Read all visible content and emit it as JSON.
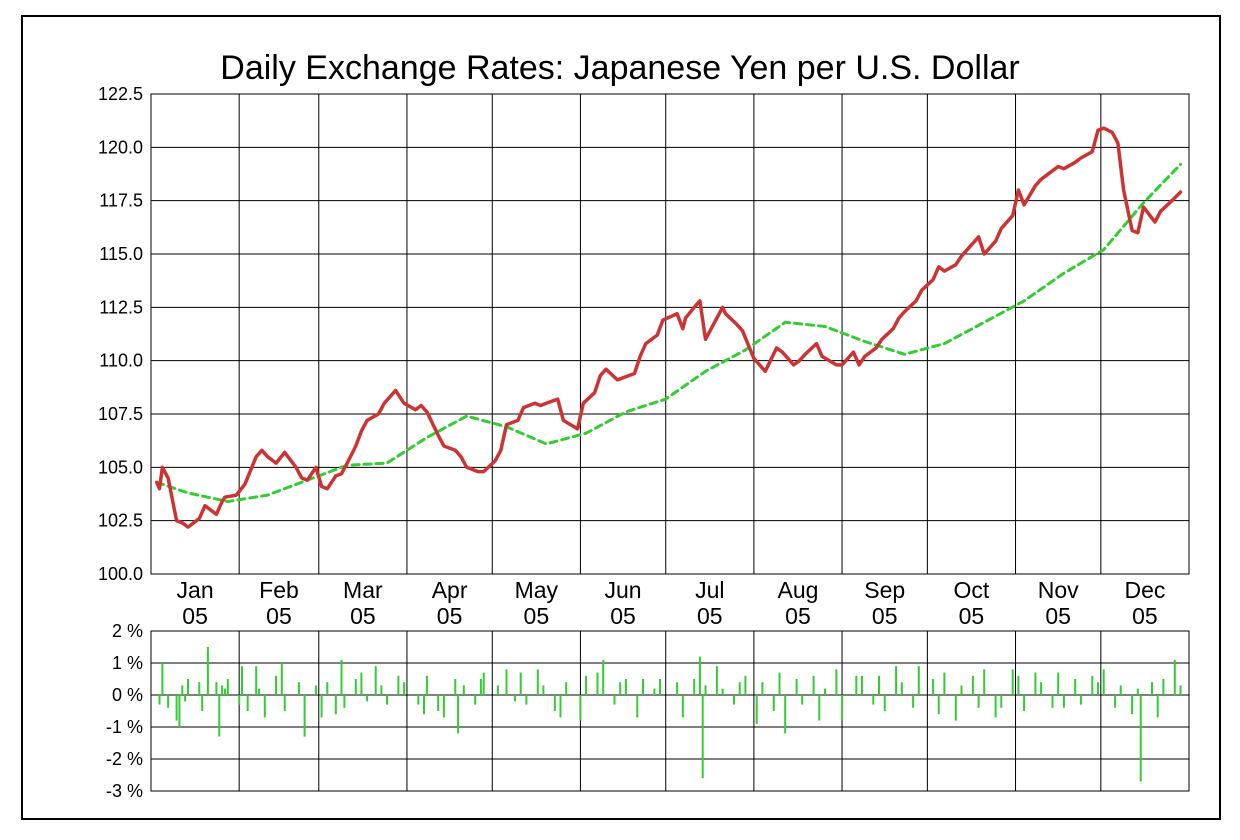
{
  "colors": {
    "rate_line": "#cc3333",
    "moving_average": "#33cc33",
    "change_bars": "#33cc33",
    "grid": "#000000"
  },
  "chart_data": [
    {
      "type": "line",
      "title": "Daily Exchange Rates: Japanese Yen per U.S. Dollar",
      "ylim": [
        100.0,
        122.5
      ],
      "y_ticks": [
        "100.0",
        "102.5",
        "105.0",
        "107.5",
        "110.0",
        "112.5",
        "115.0",
        "117.5",
        "120.0",
        "122.5"
      ],
      "x_tick_labels": [
        [
          "Jan",
          "05"
        ],
        [
          "Feb",
          "05"
        ],
        [
          "Mar",
          "05"
        ],
        [
          "Apr",
          "05"
        ],
        [
          "May",
          "05"
        ],
        [
          "Jun",
          "05"
        ],
        [
          "Jul",
          "05"
        ],
        [
          "Aug",
          "05"
        ],
        [
          "Sep",
          "05"
        ],
        [
          "Oct",
          "05"
        ],
        [
          "Nov",
          "05"
        ],
        [
          "Dec",
          "05"
        ]
      ],
      "xlim": [
        "2005-01-01",
        "2005-12-31"
      ],
      "grid": true,
      "series": [
        {
          "style": "solid",
          "x": [
            "2005-01-03",
            "2005-01-04",
            "2005-01-05",
            "2005-01-07",
            "2005-01-10",
            "2005-01-12",
            "2005-01-14",
            "2005-01-18",
            "2005-01-20",
            "2005-01-24",
            "2005-01-26",
            "2005-01-27",
            "2005-01-31",
            "2005-02-03",
            "2005-02-07",
            "2005-02-09",
            "2005-02-11",
            "2005-02-14",
            "2005-02-17",
            "2005-02-21",
            "2005-02-23",
            "2005-02-25",
            "2005-02-28",
            "2005-03-02",
            "2005-03-04",
            "2005-03-07",
            "2005-03-09",
            "2005-03-11",
            "2005-03-14",
            "2005-03-16",
            "2005-03-18",
            "2005-03-22",
            "2005-03-24",
            "2005-03-28",
            "2005-03-31",
            "2005-04-04",
            "2005-04-06",
            "2005-04-08",
            "2005-04-12",
            "2005-04-14",
            "2005-04-18",
            "2005-04-20",
            "2005-04-22",
            "2005-04-26",
            "2005-04-28",
            "2005-05-02",
            "2005-05-04",
            "2005-05-06",
            "2005-05-10",
            "2005-05-12",
            "2005-05-16",
            "2005-05-18",
            "2005-05-20",
            "2005-05-24",
            "2005-05-26",
            "2005-05-31",
            "2005-06-02",
            "2005-06-06",
            "2005-06-08",
            "2005-06-10",
            "2005-06-14",
            "2005-06-16",
            "2005-06-20",
            "2005-06-22",
            "2005-06-24",
            "2005-06-28",
            "2005-06-30",
            "2005-07-05",
            "2005-07-07",
            "2005-07-08",
            "2005-07-11",
            "2005-07-13",
            "2005-07-15",
            "2005-07-19",
            "2005-07-21",
            "2005-07-22",
            "2005-07-26",
            "2005-07-28",
            "2005-08-01",
            "2005-08-03",
            "2005-08-05",
            "2005-08-09",
            "2005-08-11",
            "2005-08-15",
            "2005-08-17",
            "2005-08-19",
            "2005-08-23",
            "2005-08-25",
            "2005-08-30",
            "2005-09-01",
            "2005-09-05",
            "2005-09-07",
            "2005-09-09",
            "2005-09-13",
            "2005-09-15",
            "2005-09-19",
            "2005-09-21",
            "2005-09-23",
            "2005-09-27",
            "2005-09-29",
            "2005-10-03",
            "2005-10-05",
            "2005-10-07",
            "2005-10-11",
            "2005-10-13",
            "2005-10-17",
            "2005-10-19",
            "2005-10-21",
            "2005-10-25",
            "2005-10-27",
            "2005-10-31",
            "2005-11-02",
            "2005-11-04",
            "2005-11-08",
            "2005-11-10",
            "2005-11-14",
            "2005-11-16",
            "2005-11-18",
            "2005-11-22",
            "2005-11-24",
            "2005-11-28",
            "2005-11-30",
            "2005-12-02",
            "2005-12-05",
            "2005-12-07",
            "2005-12-09",
            "2005-12-12",
            "2005-12-14",
            "2005-12-16",
            "2005-12-20",
            "2005-12-22",
            "2005-12-26",
            "2005-12-29"
          ],
          "values": [
            104.3,
            104.0,
            105.0,
            104.5,
            102.5,
            102.4,
            102.2,
            102.6,
            103.2,
            102.8,
            103.4,
            103.6,
            103.7,
            104.2,
            105.5,
            105.8,
            105.5,
            105.2,
            105.7,
            105.0,
            104.5,
            104.4,
            105.0,
            104.1,
            104.0,
            104.6,
            104.7,
            105.2,
            106.0,
            106.7,
            107.2,
            107.5,
            108.0,
            108.6,
            108.0,
            107.7,
            107.9,
            107.6,
            106.5,
            106.0,
            105.8,
            105.5,
            105.0,
            104.8,
            104.8,
            105.3,
            105.8,
            107.0,
            107.2,
            107.8,
            108.0,
            107.9,
            108.0,
            108.2,
            107.2,
            106.8,
            108.0,
            108.5,
            109.3,
            109.6,
            109.1,
            109.2,
            109.4,
            110.2,
            110.8,
            111.2,
            111.9,
            112.2,
            111.5,
            112.0,
            112.5,
            112.8,
            111.0,
            112.0,
            112.5,
            112.2,
            111.7,
            111.4,
            110.1,
            109.8,
            109.5,
            110.6,
            110.4,
            109.8,
            110.0,
            110.3,
            110.8,
            110.2,
            109.8,
            109.8,
            110.4,
            109.8,
            110.2,
            110.6,
            111.0,
            111.5,
            112.0,
            112.3,
            112.8,
            113.3,
            113.8,
            114.4,
            114.2,
            114.5,
            114.9,
            115.5,
            115.8,
            115.0,
            115.6,
            116.2,
            116.8,
            118.0,
            117.3,
            118.2,
            118.5,
            118.9,
            119.1,
            119.0,
            119.3,
            119.5,
            119.8,
            120.8,
            120.9,
            120.7,
            120.2,
            118.0,
            116.1,
            116.0,
            117.2,
            116.5,
            117.0,
            117.5,
            117.9
          ]
        },
        {
          "style": "dashed",
          "x": [
            "2005-01-03",
            "2005-01-14",
            "2005-01-28",
            "2005-02-11",
            "2005-02-25",
            "2005-03-11",
            "2005-03-25",
            "2005-04-08",
            "2005-04-22",
            "2005-05-06",
            "2005-05-20",
            "2005-06-03",
            "2005-06-17",
            "2005-07-01",
            "2005-07-15",
            "2005-07-29",
            "2005-08-12",
            "2005-08-26",
            "2005-09-09",
            "2005-09-23",
            "2005-10-07",
            "2005-10-21",
            "2005-11-04",
            "2005-11-18",
            "2005-12-02",
            "2005-12-09",
            "2005-12-16",
            "2005-12-29"
          ],
          "values": [
            104.3,
            103.8,
            103.4,
            103.7,
            104.4,
            105.1,
            105.2,
            106.4,
            107.4,
            106.9,
            106.1,
            106.6,
            107.6,
            108.2,
            109.5,
            110.5,
            111.8,
            111.6,
            110.9,
            110.3,
            110.8,
            111.8,
            112.8,
            114.1,
            115.2,
            116.3,
            117.4,
            119.2
          ]
        }
      ]
    },
    {
      "type": "bar",
      "ylim": [
        -3,
        2
      ],
      "y_ticks": [
        "2 %",
        "1 %",
        "0 %",
        "-1 %",
        "-2 %",
        "-3 %"
      ],
      "x": [
        "2005-01-04",
        "2005-01-05",
        "2005-01-07",
        "2005-01-10",
        "2005-01-11",
        "2005-01-12",
        "2005-01-13",
        "2005-01-14",
        "2005-01-18",
        "2005-01-19",
        "2005-01-21",
        "2005-01-24",
        "2005-01-25",
        "2005-01-26",
        "2005-01-27",
        "2005-01-28",
        "2005-02-01",
        "2005-02-02",
        "2005-02-04",
        "2005-02-07",
        "2005-02-08",
        "2005-02-10",
        "2005-02-14",
        "2005-02-16",
        "2005-02-17",
        "2005-02-22",
        "2005-02-24",
        "2005-02-28",
        "2005-03-02",
        "2005-03-04",
        "2005-03-07",
        "2005-03-09",
        "2005-03-10",
        "2005-03-14",
        "2005-03-16",
        "2005-03-18",
        "2005-03-21",
        "2005-03-23",
        "2005-03-25",
        "2005-03-29",
        "2005-03-31",
        "2005-04-05",
        "2005-04-07",
        "2005-04-08",
        "2005-04-12",
        "2005-04-14",
        "2005-04-18",
        "2005-04-19",
        "2005-04-21",
        "2005-04-25",
        "2005-04-27",
        "2005-04-28",
        "2005-05-03",
        "2005-05-06",
        "2005-05-09",
        "2005-05-11",
        "2005-05-13",
        "2005-05-17",
        "2005-05-19",
        "2005-05-23",
        "2005-05-25",
        "2005-05-27",
        "2005-06-01",
        "2005-06-03",
        "2005-06-07",
        "2005-06-09",
        "2005-06-13",
        "2005-06-15",
        "2005-06-17",
        "2005-06-21",
        "2005-06-23",
        "2005-06-27",
        "2005-06-29",
        "2005-07-05",
        "2005-07-07",
        "2005-07-11",
        "2005-07-13",
        "2005-07-14",
        "2005-07-15",
        "2005-07-19",
        "2005-07-21",
        "2005-07-25",
        "2005-07-27",
        "2005-07-29",
        "2005-08-02",
        "2005-08-04",
        "2005-08-08",
        "2005-08-10",
        "2005-08-12",
        "2005-08-16",
        "2005-08-18",
        "2005-08-22",
        "2005-08-24",
        "2005-08-26",
        "2005-08-30",
        "2005-09-01",
        "2005-09-06",
        "2005-09-08",
        "2005-09-12",
        "2005-09-14",
        "2005-09-16",
        "2005-09-20",
        "2005-09-22",
        "2005-09-26",
        "2005-09-28",
        "2005-10-03",
        "2005-10-05",
        "2005-10-07",
        "2005-10-11",
        "2005-10-13",
        "2005-10-17",
        "2005-10-19",
        "2005-10-21",
        "2005-10-25",
        "2005-10-27",
        "2005-10-31",
        "2005-11-02",
        "2005-11-04",
        "2005-11-08",
        "2005-11-10",
        "2005-11-14",
        "2005-11-16",
        "2005-11-18",
        "2005-11-22",
        "2005-11-24",
        "2005-11-28",
        "2005-11-30",
        "2005-12-02",
        "2005-12-06",
        "2005-12-08",
        "2005-12-12",
        "2005-12-14",
        "2005-12-15",
        "2005-12-19",
        "2005-12-21",
        "2005-12-23",
        "2005-12-27",
        "2005-12-29"
      ],
      "values": [
        -0.3,
        1.0,
        -0.4,
        -0.8,
        -1.0,
        0.3,
        -0.2,
        0.5,
        0.4,
        -0.5,
        1.5,
        0.4,
        -1.3,
        0.3,
        0.2,
        0.5,
        -0.3,
        0.9,
        -0.5,
        0.9,
        0.2,
        -0.7,
        0.6,
        1.0,
        -0.5,
        0.4,
        -1.3,
        0.3,
        -0.7,
        0.4,
        -0.6,
        1.1,
        -0.4,
        0.5,
        0.7,
        -0.2,
        0.9,
        0.3,
        -0.3,
        0.6,
        0.4,
        -0.3,
        -0.6,
        0.6,
        -0.5,
        -0.7,
        0.5,
        -1.2,
        0.3,
        -0.3,
        0.5,
        0.7,
        0.3,
        0.8,
        -0.2,
        0.7,
        -0.3,
        0.8,
        0.3,
        -0.5,
        -0.7,
        0.4,
        -0.8,
        0.6,
        0.7,
        1.1,
        -0.3,
        0.4,
        0.5,
        -0.7,
        0.5,
        0.2,
        0.5,
        0.4,
        -0.7,
        0.5,
        1.2,
        -2.6,
        0.3,
        0.9,
        0.2,
        -0.3,
        0.4,
        0.6,
        -0.9,
        0.4,
        -0.5,
        0.7,
        -1.2,
        0.5,
        -0.3,
        0.6,
        -0.8,
        0.2,
        0.8,
        -0.8,
        0.6,
        0.6,
        -0.3,
        0.6,
        -0.5,
        0.9,
        0.4,
        -0.4,
        0.9,
        0.5,
        -0.6,
        0.7,
        -0.8,
        0.3,
        0.6,
        -0.4,
        0.8,
        -0.7,
        -0.4,
        0.8,
        0.6,
        -0.5,
        0.7,
        0.4,
        -0.4,
        0.7,
        -0.4,
        0.5,
        -0.3,
        0.6,
        0.4,
        0.8,
        -0.4,
        0.3,
        -0.6,
        0.2,
        -2.7,
        0.4,
        -0.7,
        0.5,
        1.1,
        0.3
      ]
    }
  ]
}
